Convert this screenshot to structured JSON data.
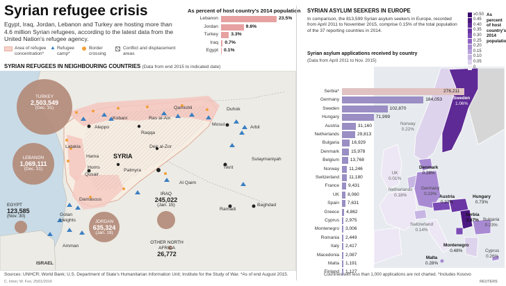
{
  "left": {
    "title": "Syrian refugee crisis",
    "intro": "Egypt, Iraq, Jordan, Lebanon and Turkey are hosting more than 4.6 million Syrian refugees, according to the latest data from the United Nation's refugee agency.",
    "host_pct": {
      "heading": "As percent of host country's 2014 population",
      "rows": [
        {
          "country": "Lebanon",
          "label": "23.5%",
          "value": 23.5
        },
        {
          "country": "Jordan",
          "label": "9.6%",
          "value": 9.6
        },
        {
          "country": "Turkey",
          "label": "3.3%",
          "value": 3.3
        },
        {
          "country": "Iraq",
          "label": "0.7%",
          "value": 0.7
        },
        {
          "country": "Egypt",
          "label": "0.1%",
          "value": 0.1
        }
      ]
    },
    "legend": {
      "area": "Area of refugee concentration*",
      "camp": "Refugee camp*",
      "border": "Border crossing",
      "conflict": "Conflict and displacement areas"
    },
    "map_heading": "SYRIAN REFUGEES IN NEIGHBOURING COUNTRIES",
    "map_subheading": "(Data from end 2015 to indicated date)",
    "refugees": {
      "turkey": {
        "name": "TURKEY",
        "value": "2,503,549",
        "date": "(Dec. 31)"
      },
      "lebanon": {
        "name": "LEBANON",
        "value": "1,069,111",
        "date": "(Dec. 31)"
      },
      "iraq": {
        "name": "IRAQ",
        "value": "245,022",
        "date": "(Jan. 15)"
      },
      "jordan": {
        "name": "JORDAN",
        "value": "635,324",
        "date": "(Jan. 19)"
      },
      "egypt": {
        "name": "EGYPT",
        "value": "123,585",
        "date": "(Nov. 30)"
      },
      "other": {
        "name": "OTHER NORTH AFRICA",
        "value": "26,772"
      }
    },
    "places": {
      "syria": "SYRIA",
      "israel": "ISRAEL",
      "qamishli": "Qamishli",
      "kobani": "Kobani",
      "ras_al_ain": "Ras al-Ain",
      "aleppo": "Aleppo",
      "raqqa": "Raqqa",
      "latakia": "Latakia",
      "deir_al_zor": "Deir al-Zor",
      "hama": "Hama",
      "homs": "Homs",
      "qusair": "Qusair",
      "palmyra": "Palmyra",
      "al_qaim": "Al Qaim",
      "damascus": "Damascus",
      "golan": "Golan Heights",
      "amman": "Amman",
      "duhok": "Duhok",
      "mosul": "Mosul",
      "arbil": "Arbil",
      "sulaymaniyah": "Sulaymaniyah",
      "tikrit": "Tikrit",
      "ramadi": "Ramadi",
      "baghdad": "Baghdad"
    },
    "sources": "Sources: UNHCR; World Bank; U.S. Department of State's Humanitarian Information Unit; Institute for the Study of War.  *As of end August 2015.",
    "credit": "C. Inton; W. Foo, 25/01/2016"
  },
  "right": {
    "heading": "SYRIAN ASYLUM SEEKERS IN EUROPE",
    "intro": "In comparison, the 813,599 Syrian asylum seekers in Europe, recorded from April 2011 to November 2015, comprise 0.15% of the total population of the 37 reporting countries in 2014.",
    "chart_heading": "Syrian asylum applications received by country",
    "chart_subheading": "(Data from April 2011 to Nov. 2015)",
    "scale": {
      "steps": [
        "≥0.50",
        "0.45",
        "0.40",
        "0.35",
        "0.30",
        "0.25",
        "0.20",
        "0.15",
        "0.10",
        "0.05",
        "0"
      ],
      "title": "As percent of host country's 2014 population"
    },
    "map_labels": {
      "sweden": {
        "name": "Sweden",
        "pct": "1.06%"
      },
      "norway": {
        "name": "Norway",
        "pct": "0.22%"
      },
      "denmark": {
        "name": "Denmark",
        "pct": "0.28%"
      },
      "uk": {
        "name": "UK",
        "pct": "0.01%"
      },
      "netherlands": {
        "name": "Netherlands",
        "pct": "0.18%"
      },
      "germany": {
        "name": "Germany",
        "pct": "0.23%"
      },
      "austria": {
        "name": "Austria",
        "pct": "0.37%"
      },
      "hungary": {
        "name": "Hungary",
        "pct": "0.73%"
      },
      "switzerland": {
        "name": "Switzerland",
        "pct": "0.14%"
      },
      "serbia": {
        "name": "Serbia",
        "pct": "3.87%"
      },
      "bulgaria": {
        "name": "Bulgaria",
        "pct": "0.23%"
      },
      "montenegro": {
        "name": "Montenegro",
        "pct": "0.48%"
      },
      "malta": {
        "name": "Malta",
        "pct": "0.28%"
      },
      "cyprus": {
        "name": "Cyprus",
        "pct": "0.26%"
      }
    },
    "footnote": "Countries with less than 1,000 applications are not charted. *Includes Kosovo",
    "reuters": "REUTERS"
  },
  "chart_data": {
    "type": "bar",
    "title": "Syrian asylum applications received by country",
    "subtitle": "(Data from April 2011 to Nov. 2015)",
    "categories": [
      "Serbia*",
      "Germany",
      "Sweden",
      "Hungary",
      "Austria",
      "Netherlands",
      "Bulgaria",
      "Denmark",
      "Belgium",
      "Norway",
      "Switzerland",
      "France",
      "UK",
      "Spain",
      "Greece",
      "Cyprus",
      "Montenegro",
      "Romania",
      "Italy",
      "Macedonia",
      "Malta",
      "Finland"
    ],
    "values": [
      276211,
      184053,
      102870,
      71999,
      31160,
      29813,
      16929,
      15978,
      13768,
      11246,
      11180,
      9431,
      8060,
      7631,
      4862,
      2975,
      3006,
      2449,
      2417,
      2087,
      1191,
      1127
    ],
    "labels": [
      "276,211",
      "184,053",
      "102,870",
      "71,999",
      "31,160",
      "29,813",
      "16,929",
      "15,978",
      "13,768",
      "11,246",
      "11,180",
      "9,431",
      "8,060",
      "7,631",
      "4,862",
      "2,975",
      "3,006",
      "2,449",
      "2,417",
      "2,087",
      "1,191",
      "1,127"
    ],
    "xlim": [
      0,
      276211
    ],
    "colors": {
      "top": "#e0c2c2",
      "rest": "#9a8ec4"
    }
  }
}
